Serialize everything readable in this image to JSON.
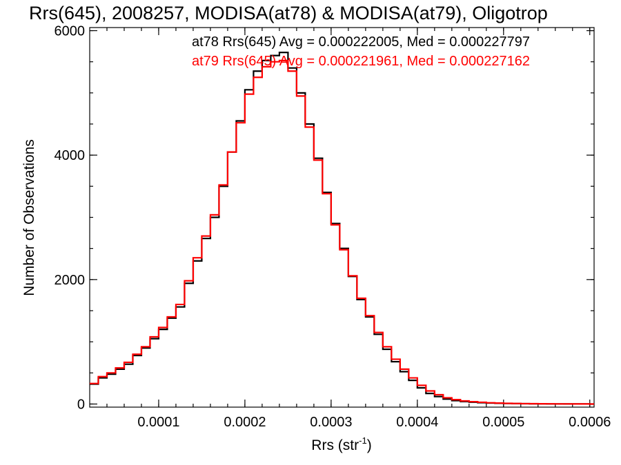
{
  "chart_data": {
    "type": "line",
    "step": true,
    "title": "Rrs(645), 2008257, MODISA(at78) & MODISA(at79), Oligotrop",
    "xlabel": "Rrs (str",
    "xlabel_sup": "-1",
    "xlabel_end": ")",
    "ylabel": "Number of Observations",
    "xlim": [
      2e-05,
      0.000605
    ],
    "ylim": [
      -50,
      6050
    ],
    "x_ticks": [
      {
        "v": 0.0001,
        "label": "0.0001"
      },
      {
        "v": 0.0002,
        "label": "0.0002"
      },
      {
        "v": 0.0003,
        "label": "0.0003"
      },
      {
        "v": 0.0004,
        "label": "0.0004"
      },
      {
        "v": 0.0005,
        "label": "0.0005"
      },
      {
        "v": 0.0006,
        "label": "0.0006"
      }
    ],
    "y_ticks": [
      {
        "v": 0,
        "label": "0"
      },
      {
        "v": 2000,
        "label": "2000"
      },
      {
        "v": 4000,
        "label": "4000"
      },
      {
        "v": 6000,
        "label": "6000"
      }
    ],
    "x_minor_step": 2e-05,
    "y_minor_step": 500,
    "series": [
      {
        "name": "at78",
        "color": "#000000",
        "legend_text": "at78 Rrs(645) Avg = 0.000222005, Med = 0.000227797",
        "x": [
          2e-05,
          3e-05,
          4e-05,
          5e-05,
          6e-05,
          7e-05,
          8e-05,
          9e-05,
          0.0001,
          0.00011,
          0.00012,
          0.00013,
          0.00014,
          0.00015,
          0.00016,
          0.00017,
          0.00018,
          0.00019,
          0.0002,
          0.00021,
          0.00022,
          0.00023,
          0.00024,
          0.00025,
          0.00026,
          0.00027,
          0.00028,
          0.00029,
          0.0003,
          0.00031,
          0.00032,
          0.00033,
          0.00034,
          0.00035,
          0.00036,
          0.00037,
          0.00038,
          0.00039,
          0.0004,
          0.00041,
          0.00042,
          0.00043,
          0.00044,
          0.00045,
          0.00046,
          0.00047,
          0.00048,
          0.00049,
          0.0005,
          0.00051,
          0.00052,
          0.00053,
          0.00054,
          0.00055,
          0.00056,
          0.00057,
          0.00058,
          0.00059,
          0.0006
        ],
        "values": [
          320,
          420,
          480,
          560,
          640,
          780,
          900,
          1050,
          1200,
          1380,
          1560,
          1940,
          2300,
          2660,
          3000,
          3500,
          4050,
          4550,
          5050,
          5350,
          5520,
          5600,
          5650,
          5400,
          5000,
          4500,
          3950,
          3400,
          2900,
          2500,
          2050,
          1680,
          1400,
          1120,
          880,
          680,
          520,
          380,
          260,
          170,
          120,
          80,
          55,
          40,
          30,
          22,
          16,
          12,
          9,
          7,
          5,
          4,
          3,
          2,
          2,
          1,
          1,
          1,
          0
        ]
      },
      {
        "name": "at79",
        "color": "#ff0000",
        "legend_text": "at79 Rrs(645) Avg = 0.000221961, Med = 0.000227162",
        "x": [
          2e-05,
          3e-05,
          4e-05,
          5e-05,
          6e-05,
          7e-05,
          8e-05,
          9e-05,
          0.0001,
          0.00011,
          0.00012,
          0.00013,
          0.00014,
          0.00015,
          0.00016,
          0.00017,
          0.00018,
          0.00019,
          0.0002,
          0.00021,
          0.00022,
          0.00023,
          0.00024,
          0.00025,
          0.00026,
          0.00027,
          0.00028,
          0.00029,
          0.0003,
          0.00031,
          0.00032,
          0.00033,
          0.00034,
          0.00035,
          0.00036,
          0.00037,
          0.00038,
          0.00039,
          0.0004,
          0.00041,
          0.00042,
          0.00043,
          0.00044,
          0.00045,
          0.00046,
          0.00047,
          0.00048,
          0.00049,
          0.0005,
          0.00051,
          0.00052,
          0.00053,
          0.00054,
          0.00055,
          0.00056,
          0.00057,
          0.00058,
          0.00059,
          0.0006
        ],
        "values": [
          330,
          440,
          500,
          580,
          670,
          800,
          920,
          1080,
          1230,
          1400,
          1600,
          1980,
          2350,
          2700,
          3040,
          3520,
          4050,
          4520,
          4980,
          5250,
          5420,
          5500,
          5520,
          5350,
          4950,
          4450,
          3920,
          3380,
          2880,
          2480,
          2060,
          1700,
          1420,
          1150,
          920,
          720,
          560,
          420,
          300,
          210,
          150,
          100,
          70,
          50,
          38,
          28,
          20,
          15,
          11,
          8,
          6,
          5,
          4,
          3,
          2,
          2,
          1,
          1,
          0
        ]
      }
    ]
  }
}
